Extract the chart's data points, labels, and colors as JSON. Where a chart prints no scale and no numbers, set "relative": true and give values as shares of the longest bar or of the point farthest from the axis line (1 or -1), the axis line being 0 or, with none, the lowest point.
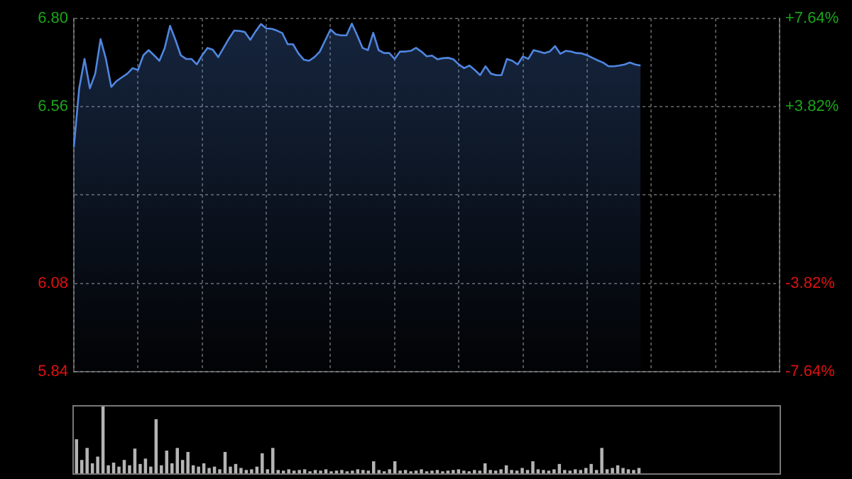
{
  "chart_data": [
    {
      "type": "area",
      "categories": [
        null,
        null,
        null,
        null,
        null,
        null,
        null,
        null,
        null,
        null,
        null,
        null,
        null,
        null,
        null,
        null,
        null,
        null,
        null,
        null,
        null,
        null,
        null,
        null,
        null,
        null,
        null,
        null,
        null,
        null,
        null,
        null,
        null,
        null,
        null,
        null,
        null,
        null,
        null,
        null,
        null,
        null,
        null,
        null,
        null,
        null,
        null,
        null,
        null,
        null,
        null,
        null,
        null,
        null,
        null,
        null,
        null,
        null,
        null,
        null,
        null,
        null,
        null,
        null,
        null,
        null,
        null,
        null,
        null,
        null,
        null,
        null,
        null,
        null,
        null,
        null,
        null,
        null,
        null,
        null,
        null,
        null,
        null,
        null,
        null,
        null,
        null,
        null,
        null,
        null,
        null,
        null,
        null,
        null,
        null,
        null,
        null,
        null,
        null,
        null,
        null,
        null,
        null,
        null,
        null,
        null,
        null,
        null,
        null,
        null,
        null,
        null,
        null,
        null,
        null,
        null,
        null,
        null,
        null,
        null,
        null,
        null,
        null,
        null,
        null,
        null,
        null,
        null,
        null,
        null,
        null,
        null,
        null
      ],
      "series": [
        {
          "color": "#4f86e0",
          "values": [
            6.45,
            6.61,
            6.69,
            6.61,
            6.65,
            6.744,
            6.69,
            6.614,
            6.63,
            6.64,
            6.65,
            6.665,
            6.66,
            6.7,
            6.714,
            6.7,
            6.685,
            6.72,
            6.78,
            6.742,
            6.7,
            6.69,
            6.69,
            6.675,
            6.7,
            6.72,
            6.715,
            6.695,
            6.72,
            6.745,
            6.767,
            6.766,
            6.763,
            6.742,
            6.765,
            6.785,
            6.773,
            6.772,
            6.767,
            6.76,
            6.73,
            6.73,
            6.705,
            6.688,
            6.685,
            6.695,
            6.71,
            6.74,
            6.77,
            6.757,
            6.754,
            6.754,
            6.786,
            6.754,
            6.72,
            6.714,
            6.761,
            6.714,
            6.706,
            6.706,
            6.69,
            6.71,
            6.71,
            6.712,
            6.72,
            6.71,
            6.697,
            6.699,
            6.689,
            6.692,
            6.693,
            6.689,
            6.675,
            6.665,
            6.672,
            6.66,
            6.646,
            6.67,
            6.65,
            6.646,
            6.646,
            6.69,
            6.685,
            6.675,
            6.697,
            6.69,
            6.714,
            6.71,
            6.706,
            6.71,
            6.725,
            6.704,
            6.712,
            6.71,
            6.706,
            6.705,
            6.7,
            6.693,
            6.686,
            6.68,
            6.67,
            6.67,
            6.672,
            6.675,
            6.68,
            6.675,
            6.672,
            null,
            null,
            null,
            null,
            null,
            null,
            null,
            null,
            null,
            null,
            null,
            null,
            null,
            null,
            null,
            null,
            null,
            null,
            null,
            null,
            null,
            null,
            null,
            null,
            null,
            null
          ]
        }
      ],
      "ylim": [
        5.84,
        6.8
      ],
      "yticks": [
        5.84,
        6.08,
        {
          "value": 6.32,
          "label": null
        },
        6.56,
        {
          "value": 6.8,
          "label": "6.80"
        }
      ],
      "y2lim": [
        -7.64,
        7.64
      ],
      "y2ticks": [
        {
          "value": -7.64,
          "label": "-7.64%"
        },
        {
          "value": -3.82,
          "label": "-3.82%"
        },
        {
          "value": 0,
          "label": null
        },
        {
          "value": 3.82,
          "label": "+3.82%"
        },
        {
          "value": 7.64,
          "label": "+7.64%"
        }
      ],
      "grid": true,
      "marker": "none"
    },
    {
      "type": "bar",
      "relative": true,
      "color": "#b4b4b4",
      "categories": [
        null,
        null,
        null,
        null,
        null,
        null,
        null,
        null,
        null,
        null,
        null,
        null,
        null,
        null,
        null,
        null,
        null,
        null,
        null,
        null,
        null,
        null,
        null,
        null,
        null,
        null,
        null,
        null,
        null,
        null,
        null,
        null,
        null,
        null,
        null,
        null,
        null,
        null,
        null,
        null,
        null,
        null,
        null,
        null,
        null,
        null,
        null,
        null,
        null,
        null,
        null,
        null,
        null,
        null,
        null,
        null,
        null,
        null,
        null,
        null,
        null,
        null,
        null,
        null,
        null,
        null,
        null,
        null,
        null,
        null,
        null,
        null,
        null,
        null,
        null,
        null,
        null,
        null,
        null,
        null,
        null,
        null,
        null,
        null,
        null,
        null,
        null,
        null,
        null,
        null,
        null,
        null,
        null,
        null,
        null,
        null,
        null,
        null,
        null,
        null,
        null,
        null,
        null,
        null,
        null,
        null,
        null,
        null,
        null,
        null,
        null,
        null,
        null,
        null,
        null,
        null,
        null,
        null,
        null,
        null,
        null,
        null,
        null,
        null,
        null,
        null,
        null,
        null,
        null,
        null,
        null,
        null,
        null
      ],
      "values": [
        0.51,
        0.2,
        0.38,
        0.15,
        0.25,
        1,
        0.12,
        0.16,
        0.1,
        0.2,
        0.12,
        0.37,
        0.14,
        0.22,
        0.1,
        0.81,
        0.12,
        0.34,
        0.15,
        0.38,
        0.2,
        0.32,
        0.12,
        0.1,
        0.15,
        0.08,
        0.1,
        0.06,
        0.32,
        0.1,
        0.14,
        0.08,
        0.05,
        0.06,
        0.1,
        0.3,
        0.06,
        0.38,
        0.05,
        0.04,
        0.06,
        0.04,
        0.05,
        0.06,
        0.03,
        0.05,
        0.04,
        0.06,
        0.03,
        0.04,
        0.05,
        0.03,
        0.04,
        0.06,
        0.05,
        0.04,
        0.18,
        0.05,
        0.03,
        0.06,
        0.18,
        0.04,
        0.05,
        0.03,
        0.04,
        0.06,
        0.03,
        0.04,
        0.05,
        0.03,
        0.04,
        0.05,
        0.06,
        0.04,
        0.03,
        0.05,
        0.04,
        0.15,
        0.05,
        0.04,
        0.06,
        0.12,
        0.05,
        0.04,
        0.08,
        0.05,
        0.18,
        0.06,
        0.05,
        0.04,
        0.06,
        0.14,
        0.05,
        0.04,
        0.06,
        0.05,
        0.08,
        0.14,
        0.05,
        0.38,
        0.06,
        0.08,
        0.12,
        0.08,
        0.06,
        0.05,
        0.08,
        null,
        null,
        null,
        null,
        null,
        null,
        null,
        null,
        null,
        null,
        null,
        null,
        null,
        null,
        null,
        null,
        null,
        null,
        null,
        null,
        null,
        null,
        null,
        null,
        null,
        null
      ]
    }
  ]
}
